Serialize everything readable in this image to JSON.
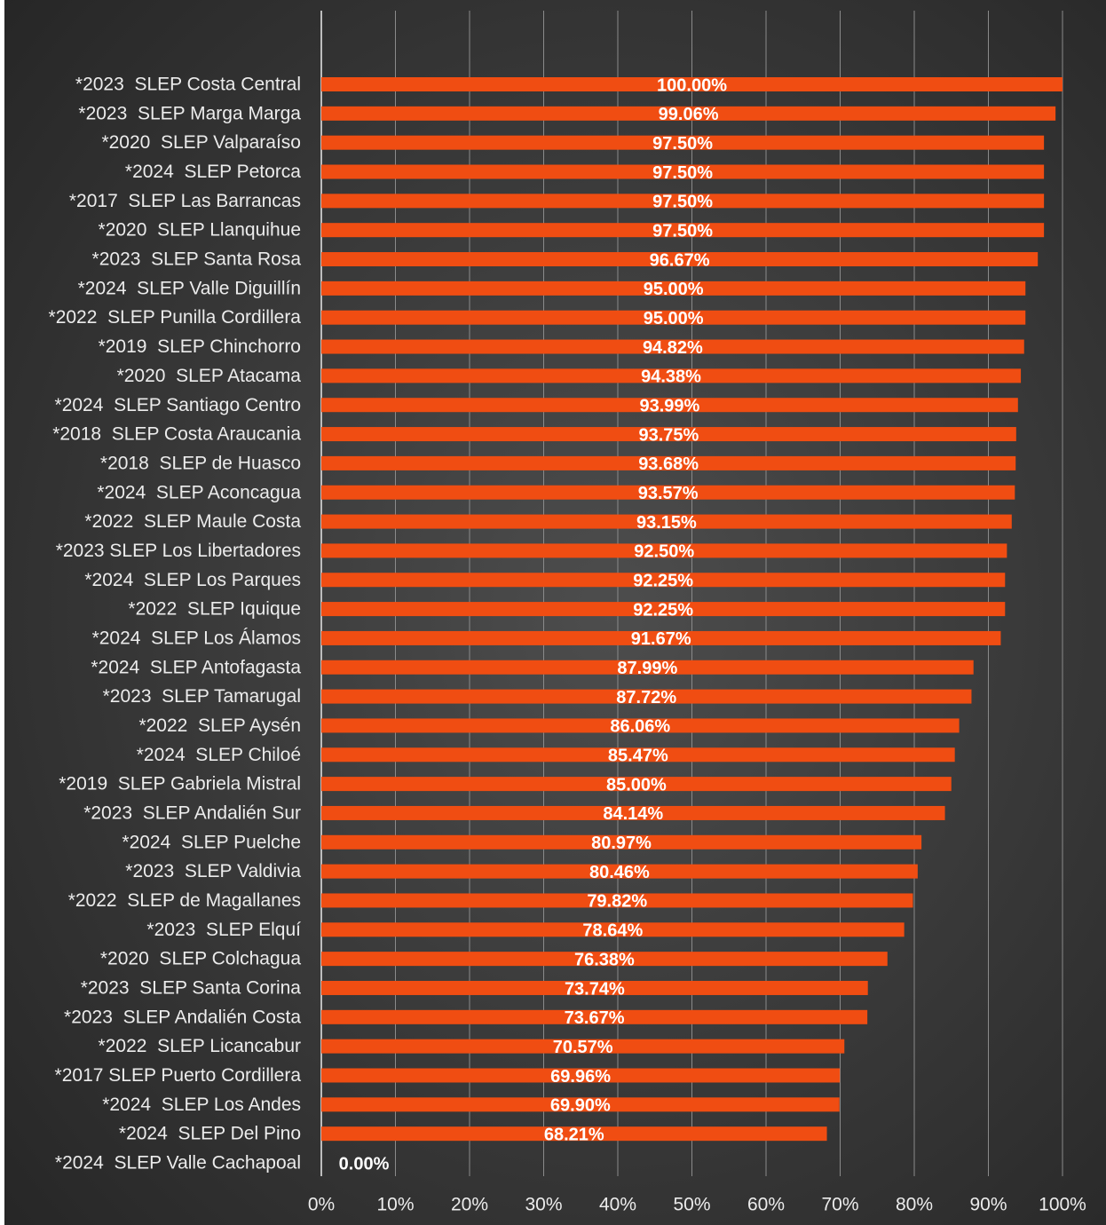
{
  "chart_data": {
    "type": "bar",
    "orientation": "horizontal",
    "color": "#f04d12",
    "categories": [
      "*2023  SLEP Costa Central",
      "*2023  SLEP Marga Marga",
      "*2020  SLEP Valparaíso",
      "*2024  SLEP Petorca",
      "*2017  SLEP Las Barrancas",
      "*2020  SLEP Llanquihue",
      "*2023  SLEP Santa Rosa",
      "*2024  SLEP Valle Diguillín",
      "*2022  SLEP Punilla Cordillera",
      "*2019  SLEP Chinchorro",
      "*2020  SLEP Atacama",
      "*2024  SLEP Santiago Centro",
      "*2018  SLEP Costa Araucania",
      "*2018  SLEP de Huasco",
      "*2024  SLEP Aconcagua",
      "*2022  SLEP Maule Costa",
      "*2023 SLEP Los Libertadores",
      "*2024  SLEP Los Parques",
      "*2022  SLEP Iquique",
      "*2024  SLEP Los Álamos",
      "*2024  SLEP Antofagasta",
      "*2023  SLEP Tamarugal",
      "*2022  SLEP Aysén",
      "*2024  SLEP Chiloé",
      "*2019  SLEP Gabriela Mistral",
      "*2023  SLEP Andalién Sur",
      "*2024  SLEP Puelche",
      "*2023  SLEP Valdivia",
      "*2022  SLEP de Magallanes",
      "*2023  SLEP Elquí",
      "*2020  SLEP Colchagua",
      "*2023  SLEP Santa Corina",
      "*2023  SLEP Andalién Costa",
      "*2022  SLEP Licancabur",
      "*2017 SLEP Puerto Cordillera",
      "*2024  SLEP Los Andes",
      "*2024  SLEP Del Pino",
      "*2024  SLEP Valle Cachapoal"
    ],
    "values": [
      100,
      99.06,
      97.5,
      97.5,
      97.5,
      97.5,
      96.67,
      95,
      95,
      94.82,
      94.38,
      93.99,
      93.75,
      93.68,
      93.57,
      93.15,
      92.5,
      92.25,
      92.25,
      91.67,
      87.99,
      87.72,
      86.06,
      85.47,
      85,
      84.14,
      80.97,
      80.46,
      79.82,
      78.64,
      76.38,
      73.74,
      73.67,
      70.57,
      69.96,
      69.9,
      68.21,
      0
    ],
    "value_labels": [
      "100.00%",
      "99.06%",
      "97.50%",
      "97.50%",
      "97.50%",
      "97.50%",
      "96.67%",
      "95.00%",
      "95.00%",
      "94.82%",
      "94.38%",
      "93.99%",
      "93.75%",
      "93.68%",
      "93.57%",
      "93.15%",
      "92.50%",
      "92.25%",
      "92.25%",
      "91.67%",
      "87.99%",
      "87.72%",
      "86.06%",
      "85.47%",
      "85.00%",
      "84.14%",
      "80.97%",
      "80.46%",
      "79.82%",
      "78.64%",
      "76.38%",
      "73.74%",
      "73.67%",
      "70.57%",
      "69.96%",
      "69.90%",
      "68.21%",
      "0.00%"
    ],
    "xlim": [
      0,
      100
    ],
    "xticks": [
      {
        "value": 0,
        "label": "0%"
      },
      {
        "value": 10,
        "label": "10%"
      },
      {
        "value": 20,
        "label": "20%"
      },
      {
        "value": 30,
        "label": "30%"
      },
      {
        "value": 40,
        "label": "40%"
      },
      {
        "value": 50,
        "label": "50%"
      },
      {
        "value": 60,
        "label": "60%"
      },
      {
        "value": 70,
        "label": "70%"
      },
      {
        "value": 80,
        "label": "80%"
      },
      {
        "value": 90,
        "label": "90%"
      },
      {
        "value": 100,
        "label": "100%"
      }
    ],
    "grid": true
  }
}
